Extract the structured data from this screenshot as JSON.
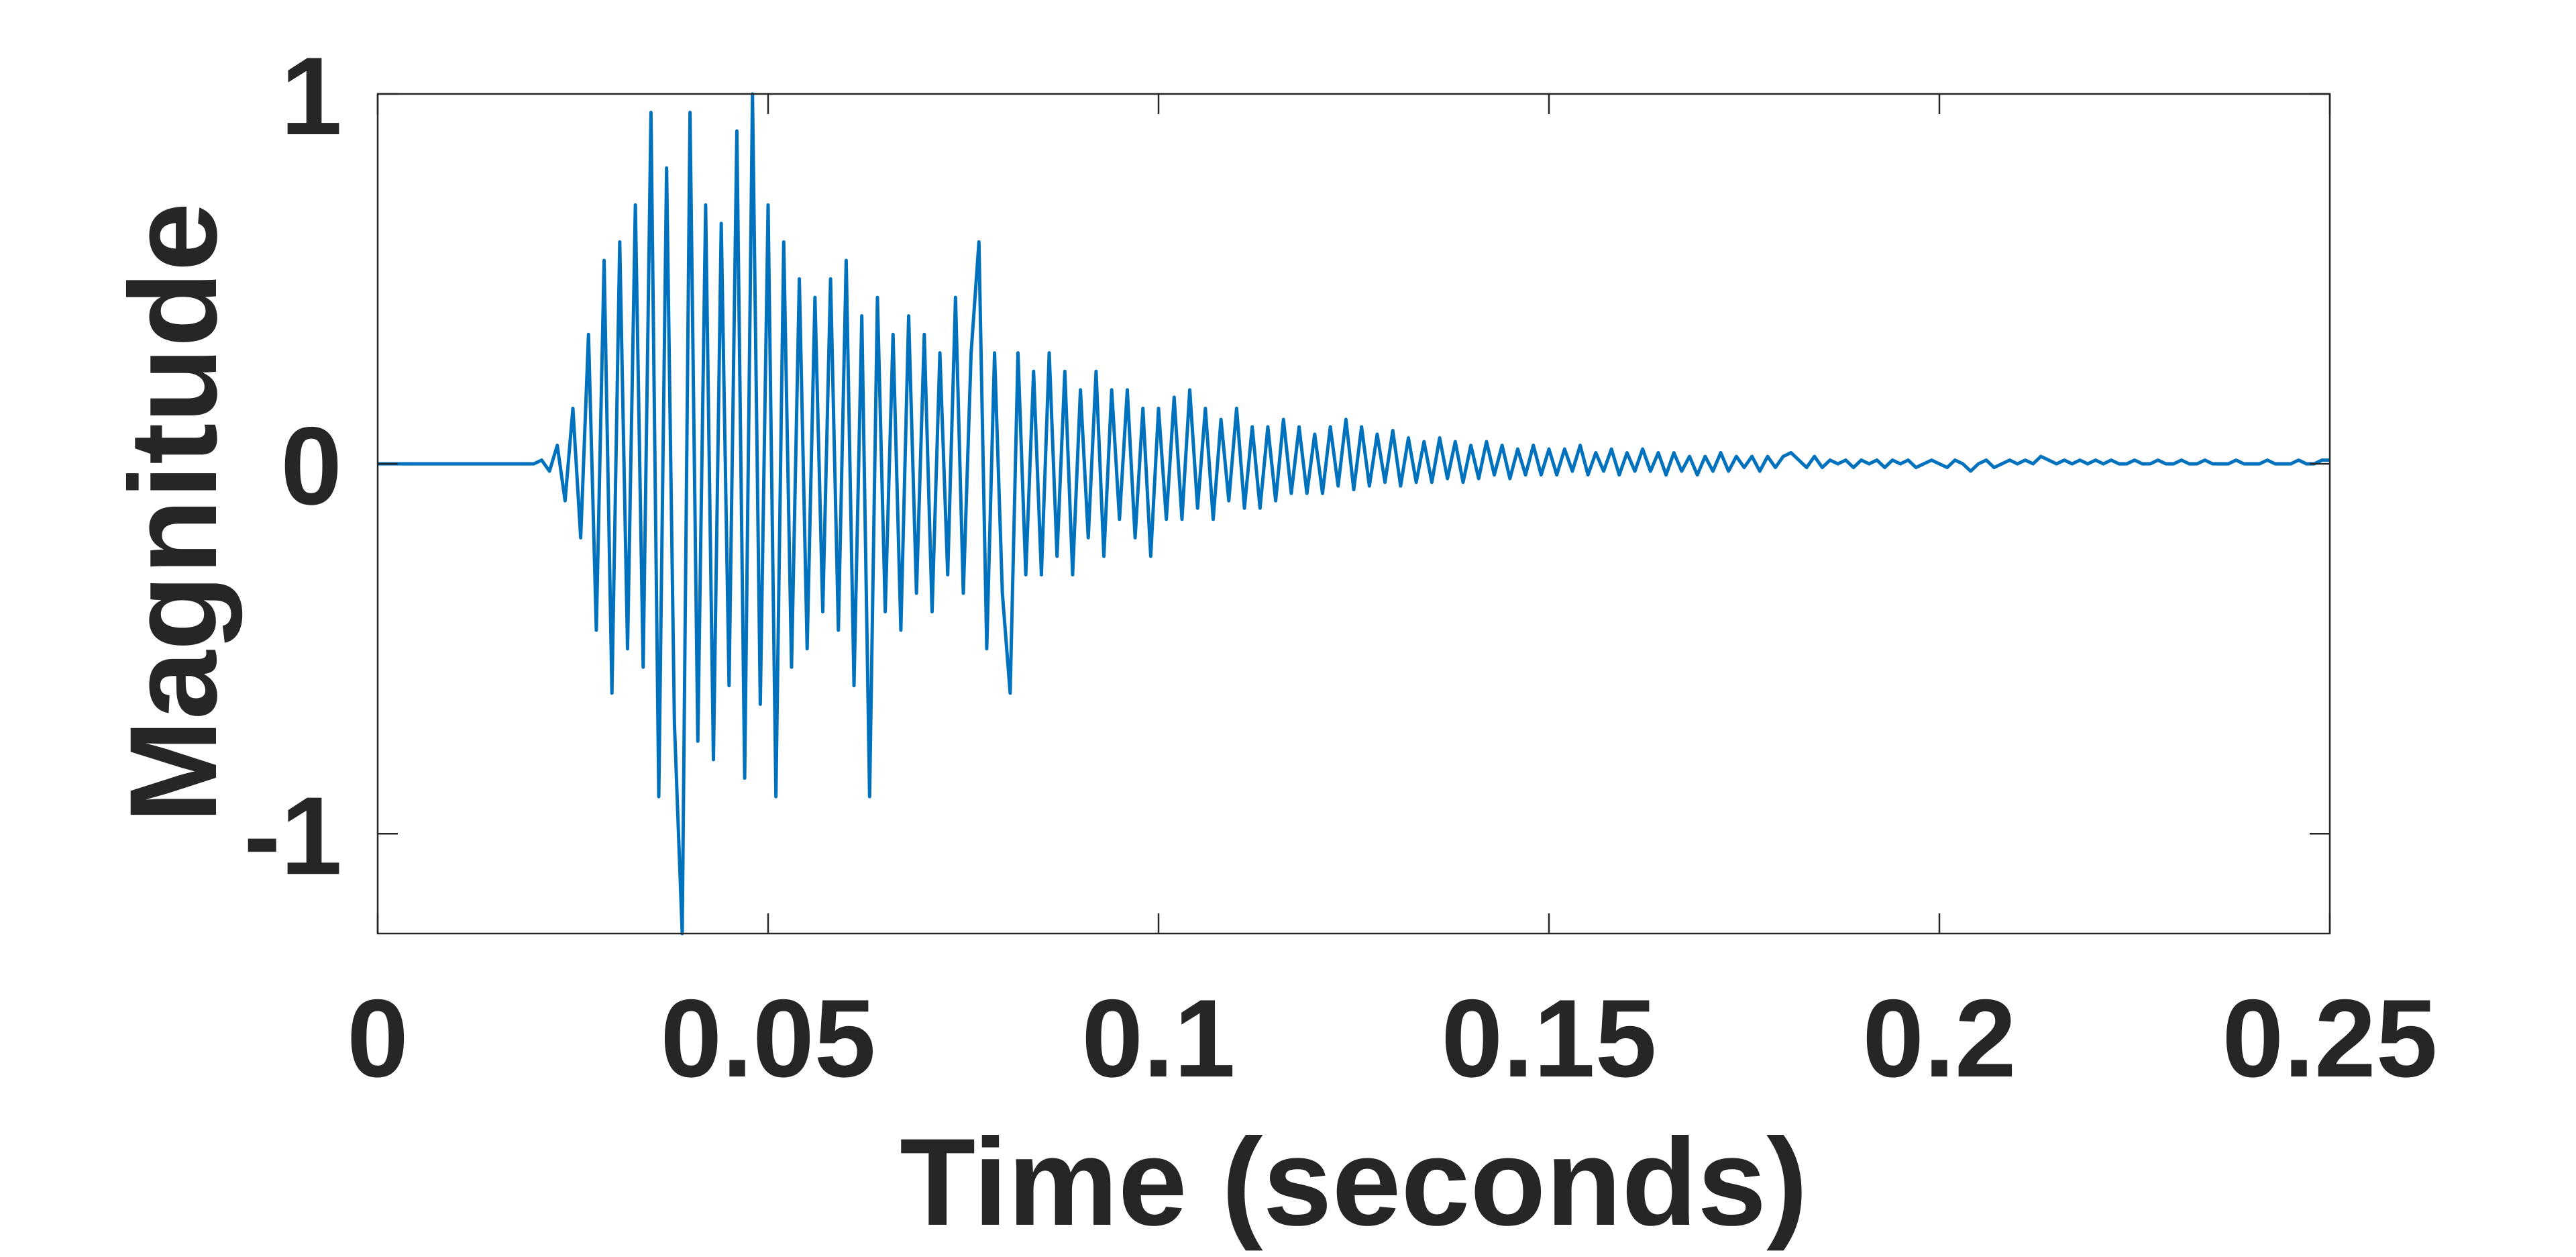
{
  "chart_data": {
    "type": "line",
    "xlabel": "Time (seconds)",
    "ylabel": "Magnitude",
    "color": "#0072bd",
    "xlim": [
      0,
      0.25
    ],
    "xticks": [
      0,
      0.05,
      0.1,
      0.15,
      0.2,
      0.25
    ],
    "ylim": [
      -1.27,
      1
    ],
    "yticks": [
      -1,
      0,
      1
    ],
    "x": [
      0,
      0.001,
      0.002,
      0.003,
      0.004,
      0.005,
      0.006,
      0.007,
      0.008,
      0.009,
      0.01,
      0.011,
      0.012,
      0.013,
      0.014,
      0.015,
      0.016,
      0.017,
      0.018,
      0.019,
      0.02,
      0.021,
      0.022,
      0.023,
      0.024,
      0.025,
      0.026,
      0.027,
      0.028,
      0.029,
      0.03,
      0.031,
      0.032,
      0.033,
      0.034,
      0.035,
      0.036,
      0.037,
      0.038,
      0.039,
      0.04,
      0.041,
      0.042,
      0.043,
      0.044,
      0.045,
      0.046,
      0.047,
      0.048,
      0.049,
      0.05,
      0.051,
      0.052,
      0.053,
      0.054,
      0.055,
      0.056,
      0.057,
      0.058,
      0.059,
      0.06,
      0.061,
      0.062,
      0.063,
      0.064,
      0.065,
      0.066,
      0.067,
      0.068,
      0.069,
      0.07,
      0.071,
      0.072,
      0.073,
      0.074,
      0.075,
      0.076,
      0.077,
      0.078,
      0.079,
      0.08,
      0.081,
      0.082,
      0.083,
      0.084,
      0.085,
      0.086,
      0.087,
      0.088,
      0.089,
      0.09,
      0.091,
      0.092,
      0.093,
      0.094,
      0.095,
      0.096,
      0.097,
      0.098,
      0.099,
      0.1,
      0.101,
      0.102,
      0.103,
      0.104,
      0.105,
      0.106,
      0.107,
      0.108,
      0.109,
      0.11,
      0.111,
      0.112,
      0.113,
      0.114,
      0.115,
      0.116,
      0.117,
      0.118,
      0.119,
      0.12,
      0.121,
      0.122,
      0.123,
      0.124,
      0.125,
      0.126,
      0.127,
      0.128,
      0.129,
      0.13,
      0.131,
      0.132,
      0.133,
      0.134,
      0.135,
      0.136,
      0.137,
      0.138,
      0.139,
      0.14,
      0.141,
      0.142,
      0.143,
      0.144,
      0.145,
      0.146,
      0.147,
      0.148,
      0.149,
      0.15,
      0.151,
      0.152,
      0.153,
      0.154,
      0.155,
      0.156,
      0.157,
      0.158,
      0.159,
      0.16,
      0.161,
      0.162,
      0.163,
      0.164,
      0.165,
      0.166,
      0.167,
      0.168,
      0.169,
      0.17,
      0.171,
      0.172,
      0.173,
      0.174,
      0.175,
      0.176,
      0.177,
      0.178,
      0.179,
      0.18,
      0.181,
      0.182,
      0.183,
      0.184,
      0.185,
      0.186,
      0.187,
      0.188,
      0.189,
      0.19,
      0.191,
      0.192,
      0.193,
      0.194,
      0.195,
      0.196,
      0.197,
      0.198,
      0.199,
      0.2,
      0.201,
      0.202,
      0.203,
      0.204,
      0.205,
      0.206,
      0.207,
      0.208,
      0.209,
      0.21,
      0.211,
      0.212,
      0.213,
      0.214,
      0.215,
      0.216,
      0.217,
      0.218,
      0.219,
      0.22,
      0.221,
      0.222,
      0.223,
      0.224,
      0.225,
      0.226,
      0.227,
      0.228,
      0.229,
      0.23,
      0.231,
      0.232,
      0.233,
      0.234,
      0.235,
      0.236,
      0.237,
      0.238,
      0.239,
      0.24,
      0.241,
      0.242,
      0.243,
      0.244,
      0.245,
      0.246,
      0.247,
      0.248,
      0.249,
      0.25
    ],
    "values": [
      0,
      0,
      0,
      0,
      0,
      0,
      0,
      0,
      0,
      0,
      0,
      0,
      0,
      0,
      0,
      0,
      0,
      0,
      0,
      0,
      0,
      0.01,
      -0.02,
      0.05,
      -0.1,
      0.15,
      -0.2,
      0.35,
      -0.45,
      0.55,
      -0.62,
      0.6,
      -0.5,
      0.7,
      -0.55,
      0.95,
      -0.9,
      0.8,
      -0.7,
      -1.27,
      0.95,
      -0.75,
      0.7,
      -0.8,
      0.65,
      -0.6,
      0.9,
      -0.85,
      1,
      -0.65,
      0.7,
      -0.9,
      0.6,
      -0.55,
      0.5,
      -0.5,
      0.45,
      -0.4,
      0.5,
      -0.45,
      0.55,
      -0.6,
      0.4,
      -0.9,
      0.45,
      -0.4,
      0.35,
      -0.45,
      0.4,
      -0.35,
      0.35,
      -0.4,
      0.3,
      -0.3,
      0.45,
      -0.35,
      0.3,
      0.6,
      -0.5,
      0.3,
      -0.35,
      -0.62,
      0.3,
      -0.3,
      0.25,
      -0.3,
      0.3,
      -0.25,
      0.25,
      -0.3,
      0.2,
      -0.2,
      0.25,
      -0.25,
      0.2,
      -0.15,
      0.2,
      -0.2,
      0.15,
      -0.25,
      0.15,
      -0.15,
      0.18,
      -0.15,
      0.2,
      -0.12,
      0.15,
      -0.15,
      0.12,
      -0.1,
      0.15,
      -0.12,
      0.1,
      -0.12,
      0.1,
      -0.1,
      0.12,
      -0.08,
      0.1,
      -0.08,
      0.08,
      -0.08,
      0.1,
      -0.06,
      0.12,
      -0.07,
      0.1,
      -0.06,
      0.08,
      -0.05,
      0.09,
      -0.06,
      0.07,
      -0.05,
      0.06,
      -0.05,
      0.07,
      -0.04,
      0.06,
      -0.05,
      0.05,
      -0.04,
      0.06,
      -0.03,
      0.05,
      -0.04,
      0.04,
      -0.03,
      0.05,
      -0.03,
      0.04,
      -0.03,
      0.04,
      -0.02,
      0.05,
      -0.03,
      0.03,
      -0.02,
      0.04,
      -0.03,
      0.03,
      -0.02,
      0.04,
      -0.02,
      0.03,
      -0.03,
      0.03,
      -0.02,
      0.02,
      -0.03,
      0.02,
      -0.02,
      0.03,
      -0.02,
      0.02,
      -0.01,
      0.02,
      -0.02,
      0.02,
      -0.01,
      0.02,
      0.03,
      0.01,
      -0.01,
      0.02,
      -0.01,
      0.01,
      0,
      0.01,
      -0.01,
      0.01,
      0,
      0.01,
      -0.01,
      0.01,
      0,
      0.01,
      -0.01,
      0,
      0.01,
      0,
      -0.01,
      0.01,
      0,
      -0.02,
      0,
      0.01,
      -0.01,
      0,
      0.01,
      0,
      0.01,
      0,
      0.02,
      0.01,
      0,
      0.01,
      0,
      0.01,
      0,
      0.01,
      0,
      0.01,
      0,
      0,
      0.01,
      0,
      0,
      0.01,
      0,
      0,
      0.01,
      0,
      0,
      0.01,
      0,
      0,
      0,
      0.01,
      0,
      0,
      0,
      0.01,
      0,
      0,
      0,
      0.01,
      0,
      0,
      0.01,
      0.01
    ]
  }
}
